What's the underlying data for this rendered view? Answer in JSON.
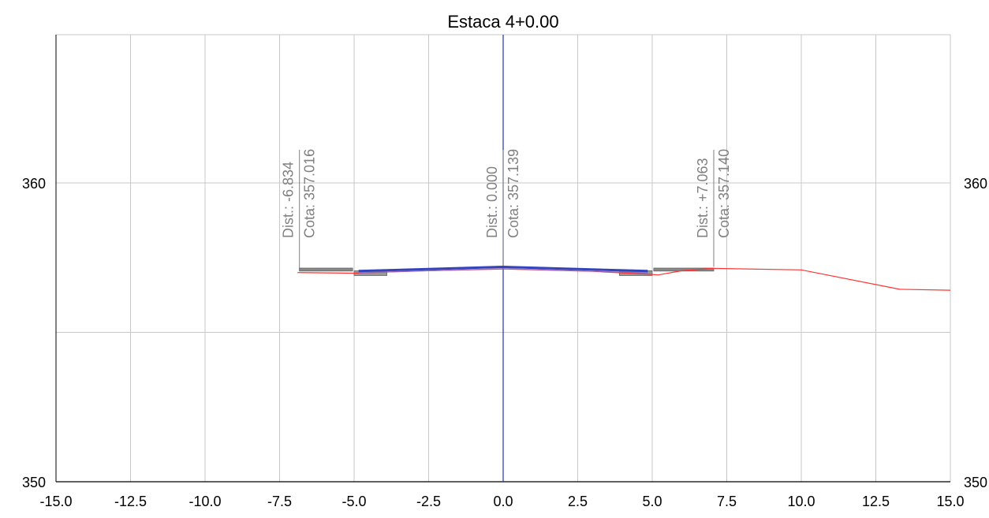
{
  "chart_data": {
    "type": "line",
    "title": "Estaca 4+0.00",
    "xlabel": "",
    "ylabel": "",
    "xlim": [
      -15,
      15
    ],
    "ylim": [
      350,
      362
    ],
    "grid": true,
    "x_ticks": [
      -15,
      -12.5,
      -10,
      -7.5,
      -5,
      -2.5,
      0,
      2.5,
      5,
      7.5,
      10,
      12.5,
      15
    ],
    "x_tick_labels": [
      "-15.0",
      "-12.5",
      "-10.0",
      "-7.5",
      "-5.0",
      "-2.5",
      "0.0",
      "2.5",
      "5.0",
      "7.5",
      "10.0",
      "12.5",
      "15.0"
    ],
    "y_ticks": [
      350,
      355,
      360
    ],
    "y_tick_labels_left": [
      "350",
      "",
      "360"
    ],
    "y_tick_labels_right": [
      "350",
      "",
      "360"
    ],
    "centerline_x": 0,
    "series": [
      {
        "kind": "terrain",
        "color": "#ff3333",
        "x": [
          -6.9,
          -5.0,
          -3.0,
          0.0,
          3.0,
          4.8,
          5.2,
          6.0,
          7.0,
          10.0,
          13.3,
          15.0
        ],
        "y": [
          357.0,
          356.98,
          357.05,
          357.12,
          357.04,
          356.95,
          356.92,
          357.06,
          357.14,
          357.09,
          356.44,
          356.41
        ]
      },
      {
        "kind": "pavement",
        "color": "#3344bb",
        "x": [
          -4.85,
          -2.5,
          0.0,
          2.5,
          4.85
        ],
        "y": [
          357.05,
          357.12,
          357.19,
          357.12,
          357.05
        ]
      },
      {
        "kind": "subgrade",
        "color": "#9966bb",
        "x": [
          -4.85,
          -2.5,
          0.0,
          2.5,
          4.85
        ],
        "y": [
          356.99,
          357.06,
          357.13,
          357.06,
          356.99
        ]
      }
    ],
    "structures": [
      {
        "name": "left-sidewalk",
        "x": [
          -6.834,
          -5.05
        ],
        "y_top": 357.15,
        "y_bottom": 357.05,
        "color": "#888888"
      },
      {
        "name": "left-gutter",
        "x": [
          -5.0,
          -3.9
        ],
        "y_top": 357.06,
        "y_bottom": 356.9,
        "color": "#999999"
      },
      {
        "name": "right-gutter",
        "x": [
          3.9,
          5.0
        ],
        "y_top": 357.06,
        "y_bottom": 356.9,
        "color": "#999999"
      },
      {
        "name": "right-sidewalk",
        "x": [
          5.05,
          7.063
        ],
        "y_top": 357.15,
        "y_bottom": 357.05,
        "color": "#888888"
      }
    ],
    "annotations": [
      {
        "x": -6.834,
        "y": 357.016,
        "dist_text": "Dist.: -6.834",
        "cota_text": "Cota: 357.016",
        "color": "#808080"
      },
      {
        "x": 0.0,
        "y": 357.139,
        "dist_text": "Dist.: 0.000",
        "cota_text": "Cota: 357.139",
        "color": "#808080"
      },
      {
        "x": 7.063,
        "y": 357.14,
        "dist_text": "Dist.: +7.063",
        "cota_text": "Cota: 357.140",
        "color": "#808080"
      }
    ],
    "colors": {
      "grid": "#c8c8c8",
      "axis": "#000000",
      "centerline": "#2233aa",
      "annotation": "#808080"
    }
  }
}
